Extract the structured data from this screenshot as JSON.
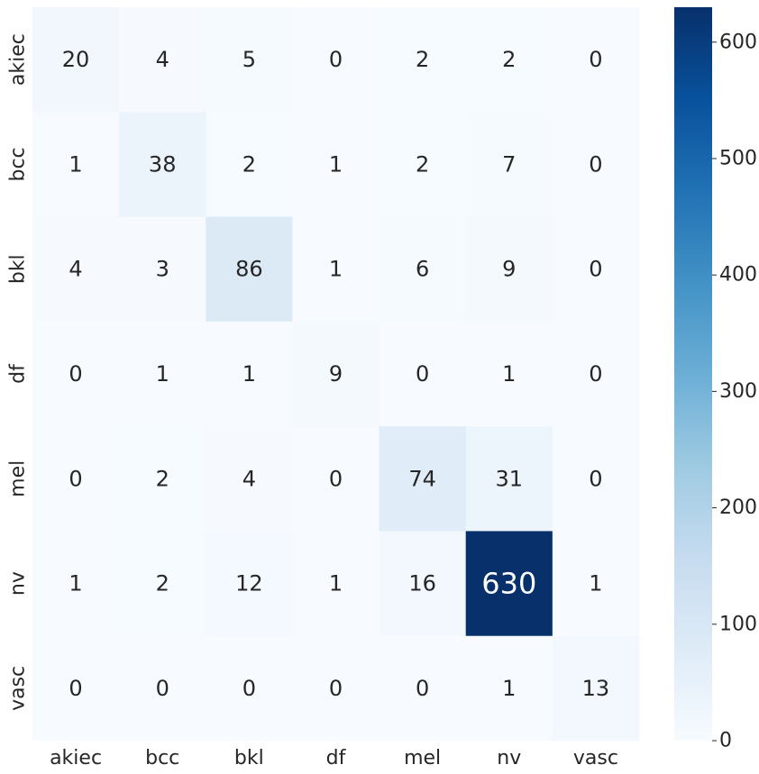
{
  "chart_data": {
    "type": "heatmap",
    "title": "",
    "xlabel": "",
    "ylabel": "",
    "x_categories": [
      "akiec",
      "bcc",
      "bkl",
      "df",
      "mel",
      "nv",
      "vasc"
    ],
    "y_categories": [
      "akiec",
      "bcc",
      "bkl",
      "df",
      "mel",
      "nv",
      "vasc"
    ],
    "values": [
      [
        20,
        4,
        5,
        0,
        2,
        2,
        0
      ],
      [
        1,
        38,
        2,
        1,
        2,
        7,
        0
      ],
      [
        4,
        3,
        86,
        1,
        6,
        9,
        0
      ],
      [
        0,
        1,
        1,
        9,
        0,
        1,
        0
      ],
      [
        0,
        2,
        4,
        0,
        74,
        31,
        0
      ],
      [
        1,
        2,
        12,
        1,
        16,
        630,
        1
      ],
      [
        0,
        0,
        0,
        0,
        0,
        1,
        13
      ]
    ],
    "colorbar": {
      "colormap": "Blues",
      "range": [
        0,
        630
      ],
      "ticks": [
        "0",
        "100",
        "200",
        "300",
        "400",
        "500",
        "600"
      ]
    },
    "grid": false,
    "colors": {
      "low": "#f7fbff",
      "high": "#08306b",
      "text_dark": "#262626",
      "text_light": "#ffffff"
    }
  }
}
